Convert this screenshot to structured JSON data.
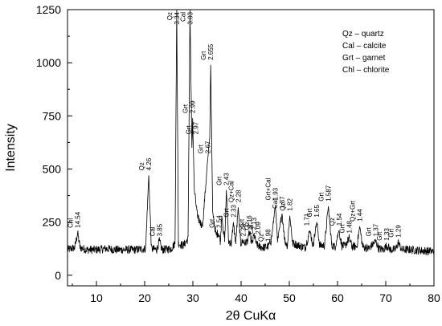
{
  "chart_data": {
    "type": "line",
    "xlabel": "2θ CuKα",
    "ylabel": "Intensity",
    "xlim": [
      4,
      80
    ],
    "ylim": [
      -50,
      1250
    ],
    "xticks": [
      "10",
      "20",
      "30",
      "40",
      "50",
      "60",
      "70",
      "80"
    ],
    "yticks": [
      "0",
      "250",
      "500",
      "750",
      "1000",
      "1250"
    ],
    "background_level": 120,
    "series": [
      {
        "values": [
          [
            4.0,
            120
          ],
          [
            5.5,
            130
          ],
          [
            6.1,
            200
          ],
          [
            6.6,
            130
          ],
          [
            8,
            120
          ],
          [
            10,
            120
          ],
          [
            12,
            125
          ],
          [
            14,
            120
          ],
          [
            16,
            120
          ],
          [
            18,
            120
          ],
          [
            20.2,
            125
          ],
          [
            20.85,
            470
          ],
          [
            21.4,
            125
          ],
          [
            22.5,
            120
          ],
          [
            23.05,
            160
          ],
          [
            23.6,
            120
          ],
          [
            25.5,
            125
          ],
          [
            26.3,
            150
          ],
          [
            26.65,
            1250
          ],
          [
            27.0,
            150
          ],
          [
            28.0,
            140
          ],
          [
            29.0,
            170
          ],
          [
            29.4,
            1250
          ],
          [
            29.8,
            600
          ],
          [
            29.95,
            740
          ],
          [
            30.3,
            400
          ],
          [
            31.0,
            270
          ],
          [
            32.0,
            230
          ],
          [
            33.1,
            550
          ],
          [
            33.5,
            650
          ],
          [
            33.7,
            990
          ],
          [
            34.1,
            300
          ],
          [
            34.8,
            190
          ],
          [
            35.3,
            200
          ],
          [
            35.7,
            160
          ],
          [
            36.0,
            280
          ],
          [
            36.6,
            160
          ],
          [
            36.95,
            400
          ],
          [
            37.4,
            160
          ],
          [
            38.0,
            150
          ],
          [
            38.4,
            250
          ],
          [
            38.9,
            150
          ],
          [
            39.4,
            320
          ],
          [
            39.9,
            150
          ],
          [
            40.4,
            160
          ],
          [
            40.9,
            150
          ],
          [
            41.5,
            170
          ],
          [
            41.7,
            200
          ],
          [
            42.3,
            150
          ],
          [
            42.7,
            190
          ],
          [
            43.2,
            145
          ],
          [
            43.8,
            135
          ],
          [
            44.6,
            130
          ],
          [
            45.6,
            135
          ],
          [
            46.2,
            160
          ],
          [
            46.5,
            210
          ],
          [
            47.1,
            330
          ],
          [
            47.6,
            160
          ],
          [
            48.5,
            290
          ],
          [
            49.1,
            160
          ],
          [
            49.6,
            140
          ],
          [
            50.1,
            280
          ],
          [
            50.7,
            150
          ],
          [
            52,
            140
          ],
          [
            53.3,
            130
          ],
          [
            54.3,
            210
          ],
          [
            54.9,
            140
          ],
          [
            55.7,
            250
          ],
          [
            56.3,
            140
          ],
          [
            57.3,
            140
          ],
          [
            58.1,
            325
          ],
          [
            58.8,
            140
          ],
          [
            59.5,
            135
          ],
          [
            60.3,
            210
          ],
          [
            60.9,
            140
          ],
          [
            61.5,
            135
          ],
          [
            62.4,
            175
          ],
          [
            63.0,
            135
          ],
          [
            64.0,
            135
          ],
          [
            64.6,
            230
          ],
          [
            65.2,
            135
          ],
          [
            66.5,
            125
          ],
          [
            67.9,
            160
          ],
          [
            68.6,
            125
          ],
          [
            69.5,
            120
          ],
          [
            70.2,
            140
          ],
          [
            71.0,
            120
          ],
          [
            72.0,
            120
          ],
          [
            72.6,
            155
          ],
          [
            73.3,
            120
          ],
          [
            75,
            120
          ],
          [
            78,
            115
          ],
          [
            80,
            112
          ]
        ]
      }
    ],
    "annotations": [
      {
        "x": 6.1,
        "y": 200,
        "d": "14.54",
        "phase": "Chl"
      },
      {
        "x": 20.85,
        "y": 470,
        "d": "4.26",
        "phase": "Qz"
      },
      {
        "x": 23.05,
        "y": 160,
        "d": "3.85",
        "phase": "Cal"
      },
      {
        "x": 26.65,
        "y": 1250,
        "d": "3.34",
        "phase": "Qz"
      },
      {
        "x": 29.4,
        "y": 1250,
        "d": "3.03",
        "phase": "Cal"
      },
      {
        "x": 29.95,
        "y": 740,
        "d": "2.99",
        "phase": "Grt"
      },
      {
        "x": 30.6,
        "y": 640,
        "d": "2.97",
        "phase": "Grt"
      },
      {
        "x": 33.05,
        "y": 550,
        "d": "2.67",
        "phase": "Grt"
      },
      {
        "x": 33.7,
        "y": 990,
        "d": "2.655",
        "phase": "Grt"
      },
      {
        "x": 35.4,
        "y": 200,
        "d": "2.54",
        "phase": "Grt"
      },
      {
        "x": 36.95,
        "y": 400,
        "d": "2.43",
        "phase": "Grt"
      },
      {
        "x": 38.4,
        "y": 250,
        "d": "2.33",
        "phase": "Grt"
      },
      {
        "x": 39.4,
        "y": 320,
        "d": "2.28",
        "phase": "Qz+Cal"
      },
      {
        "x": 40.4,
        "y": 160,
        "d": "2.23",
        "phase": ""
      },
      {
        "x": 41.7,
        "y": 200,
        "d": "2.16",
        "phase": "Grt"
      },
      {
        "x": 42.7,
        "y": 190,
        "d": "2.13",
        "phase": "Qz"
      },
      {
        "x": 43.5,
        "y": 170,
        "d": "2.09",
        "phase": "Cal"
      },
      {
        "x": 45.6,
        "y": 135,
        "d": "1.98",
        "phase": "Qz"
      },
      {
        "x": 47.1,
        "y": 330,
        "d": "1.93",
        "phase": "Grt+Cal"
      },
      {
        "x": 48.5,
        "y": 290,
        "d": "1.87",
        "phase": "Cal"
      },
      {
        "x": 50.1,
        "y": 280,
        "d": "1.82",
        "phase": "Qz"
      },
      {
        "x": 53.6,
        "y": 210,
        "d": "1.71",
        "phase": ""
      },
      {
        "x": 55.7,
        "y": 250,
        "d": "1.65",
        "phase": "Grt"
      },
      {
        "x": 58.1,
        "y": 325,
        "d": "1.587",
        "phase": "Grt"
      },
      {
        "x": 60.3,
        "y": 210,
        "d": "1.54",
        "phase": "Qz"
      },
      {
        "x": 62.4,
        "y": 175,
        "d": "1.48",
        "phase": "Grt"
      },
      {
        "x": 64.6,
        "y": 230,
        "d": "1.44",
        "phase": "Qz+Grt"
      },
      {
        "x": 67.9,
        "y": 160,
        "d": "1.37",
        "phase": "Grt"
      },
      {
        "x": 70.2,
        "y": 140,
        "d": "1.33",
        "phase": "Grt"
      },
      {
        "x": 72.6,
        "y": 155,
        "d": "1.29",
        "phase": "Grt"
      }
    ],
    "legend": {
      "position": "top-right",
      "entries": [
        "Qz – quartz",
        "Cal – calcite",
        "Grt – garnet",
        "Chl – chlorite"
      ]
    }
  }
}
